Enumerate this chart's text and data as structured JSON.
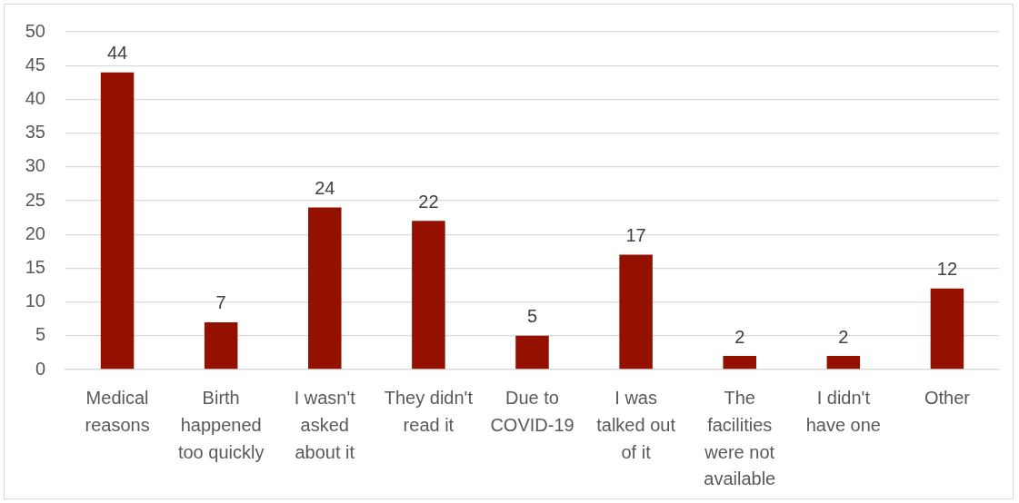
{
  "chart_data": {
    "type": "bar",
    "categories": [
      "Medical reasons",
      "Birth happened too quickly",
      "I wasn't asked about it",
      "They didn't read it",
      "Due to COVID-19",
      "I was talked out of it",
      "The facilities were not available",
      "I didn't have one",
      "Other"
    ],
    "values": [
      44,
      7,
      24,
      22,
      5,
      17,
      2,
      2,
      12
    ],
    "color": "#941100",
    "ylim": [
      0,
      50
    ],
    "yticks": [
      0,
      5,
      10,
      15,
      20,
      25,
      30,
      35,
      40,
      45,
      50
    ],
    "grid": "y",
    "data_labels": true,
    "legend": false
  }
}
